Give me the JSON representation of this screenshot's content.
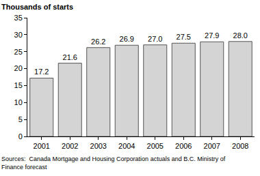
{
  "chart_data": {
    "type": "bar",
    "y_label": "Thousands of starts",
    "categories": [
      "2001",
      "2002",
      "2003",
      "2004",
      "2005",
      "2006",
      "2007",
      "2008"
    ],
    "values": [
      17.2,
      21.6,
      26.2,
      26.9,
      27.0,
      27.5,
      27.9,
      28.0
    ],
    "value_labels": [
      "17.2",
      "21.6",
      "26.2",
      "26.9",
      "27.0",
      "27.5",
      "27.9",
      "28.0"
    ],
    "color": "#d4d4d4",
    "ylim": [
      0,
      35
    ],
    "yticks": [
      0,
      5,
      10,
      15,
      20,
      25,
      30,
      35
    ],
    "grid": false,
    "data_labels": true,
    "source": "Sources:  Canada Mortgage and Housing Corporation actuals and B.C. Ministry of Finance forecast"
  }
}
